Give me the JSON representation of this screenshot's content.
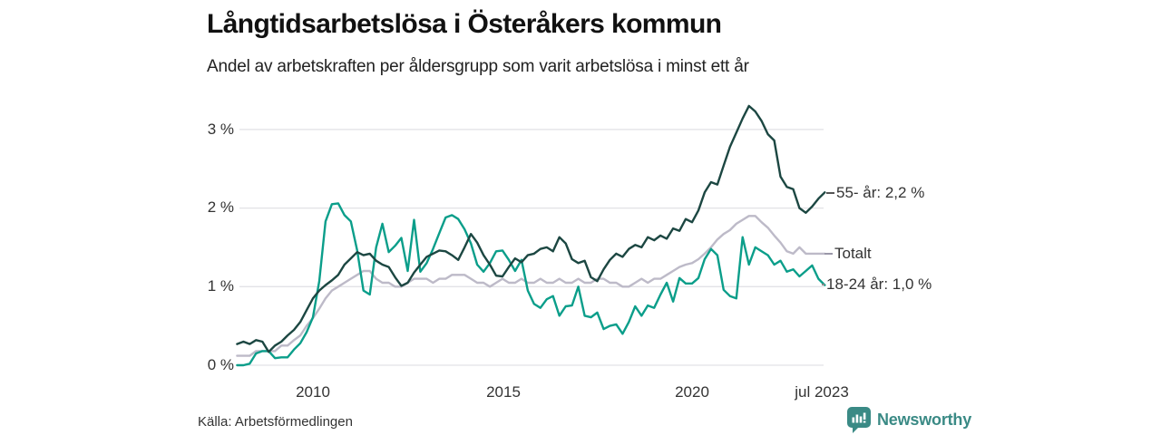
{
  "header": {
    "title": "Långtidsarbetslösa i Österåkers kommun",
    "subtitle": "Andel av arbetskraften per åldersgrupp som varit arbetslösa i minst ett år"
  },
  "chart_data": {
    "type": "line",
    "title": "Långtidsarbetslösa i Österåkers kommun",
    "subtitle": "Andel av arbetskraften per åldersgrupp som varit arbetslösa i minst ett år",
    "unit": "%",
    "x_start": 2008.0,
    "x_step": 0.166667,
    "xlim": [
      2008.0,
      2023.58
    ],
    "ylim": [
      0,
      3.4
    ],
    "grid": true,
    "ytick_labels": [
      "3 %",
      "2 %",
      "1 %",
      "0 %"
    ],
    "ytick_values": [
      3,
      2,
      1,
      0
    ],
    "xtick_labels": [
      "2010",
      "2015",
      "2020",
      "jul 2023"
    ],
    "xtick_values": [
      2010,
      2015,
      2020,
      2023.5
    ],
    "legend_position": "right-of-line-ends",
    "series": [
      {
        "name": "55- år",
        "end_label": "55- år: 2,2 %",
        "end_value": "2,2 %",
        "color": "#1c4742",
        "values": [
          0.27,
          0.3,
          0.27,
          0.32,
          0.3,
          0.17,
          0.25,
          0.3,
          0.38,
          0.45,
          0.55,
          0.7,
          0.85,
          0.95,
          1.02,
          1.08,
          1.15,
          1.28,
          1.36,
          1.44,
          1.4,
          1.42,
          1.33,
          1.28,
          1.25,
          1.12,
          1.01,
          1.05,
          1.18,
          1.28,
          1.38,
          1.42,
          1.46,
          1.45,
          1.4,
          1.34,
          1.5,
          1.67,
          1.56,
          1.4,
          1.28,
          1.14,
          1.13,
          1.25,
          1.36,
          1.31,
          1.4,
          1.42,
          1.48,
          1.5,
          1.45,
          1.63,
          1.55,
          1.35,
          1.3,
          1.33,
          1.12,
          1.07,
          1.22,
          1.34,
          1.42,
          1.38,
          1.48,
          1.53,
          1.5,
          1.63,
          1.59,
          1.65,
          1.61,
          1.74,
          1.71,
          1.86,
          1.82,
          1.97,
          2.2,
          2.33,
          2.3,
          2.54,
          2.78,
          2.96,
          3.14,
          3.3,
          3.23,
          3.11,
          2.94,
          2.86,
          2.4,
          2.27,
          2.24,
          2.0,
          1.94,
          2.02,
          2.12,
          2.2
        ]
      },
      {
        "name": "Totalt",
        "end_label": "Totalt",
        "end_value": "",
        "color": "#bdbac8",
        "values": [
          0.12,
          0.12,
          0.12,
          0.18,
          0.18,
          0.18,
          0.18,
          0.25,
          0.25,
          0.32,
          0.38,
          0.5,
          0.6,
          0.72,
          0.85,
          0.95,
          1.0,
          1.05,
          1.1,
          1.15,
          1.2,
          1.2,
          1.1,
          1.05,
          1.05,
          1.0,
          1.0,
          1.05,
          1.1,
          1.1,
          1.1,
          1.05,
          1.1,
          1.1,
          1.15,
          1.15,
          1.15,
          1.1,
          1.05,
          1.05,
          1.0,
          1.05,
          1.1,
          1.05,
          1.05,
          1.1,
          1.05,
          1.05,
          1.1,
          1.05,
          1.05,
          1.1,
          1.05,
          1.05,
          1.1,
          1.05,
          1.05,
          1.1,
          1.1,
          1.05,
          1.05,
          1.0,
          1.0,
          1.05,
          1.1,
          1.05,
          1.1,
          1.1,
          1.15,
          1.2,
          1.25,
          1.28,
          1.3,
          1.35,
          1.42,
          1.5,
          1.6,
          1.67,
          1.72,
          1.8,
          1.85,
          1.9,
          1.9,
          1.82,
          1.75,
          1.65,
          1.56,
          1.45,
          1.42,
          1.5,
          1.42,
          1.42,
          1.42,
          1.42
        ]
      },
      {
        "name": "18-24 år",
        "end_label": "18-24 år: 1,0 %",
        "end_value": "1,0 %",
        "color": "#0b9e8a",
        "values": [
          0.0,
          0.0,
          0.02,
          0.15,
          0.18,
          0.18,
          0.09,
          0.1,
          0.1,
          0.2,
          0.28,
          0.42,
          0.61,
          1.07,
          1.83,
          2.05,
          2.06,
          1.91,
          1.83,
          1.46,
          0.95,
          0.9,
          1.5,
          1.8,
          1.44,
          1.52,
          1.62,
          1.2,
          1.85,
          1.19,
          1.3,
          1.48,
          1.68,
          1.88,
          1.91,
          1.86,
          1.73,
          1.55,
          1.28,
          1.19,
          1.3,
          1.45,
          1.46,
          1.34,
          1.2,
          1.34,
          0.95,
          0.78,
          0.73,
          0.84,
          0.88,
          0.63,
          0.75,
          0.76,
          1.0,
          0.63,
          0.61,
          0.67,
          0.46,
          0.5,
          0.52,
          0.4,
          0.55,
          0.75,
          0.63,
          0.76,
          0.73,
          0.9,
          1.05,
          0.81,
          1.11,
          1.04,
          1.04,
          1.11,
          1.35,
          1.48,
          1.4,
          0.96,
          0.88,
          0.85,
          1.63,
          1.28,
          1.5,
          1.45,
          1.4,
          1.28,
          1.33,
          1.19,
          1.22,
          1.13,
          1.2,
          1.27,
          1.1,
          1.02
        ]
      }
    ],
    "colors": {
      "grid": "#e2e2e6",
      "axis_text": "#333333",
      "series_55": "#1c4742",
      "series_totalt": "#bdbac8",
      "series_18_24": "#0b9e8a"
    }
  },
  "footer": {
    "source": "Källa: Arbetsförmedlingen",
    "brand": "Newsworthy",
    "brand_color": "#3a8a85"
  }
}
